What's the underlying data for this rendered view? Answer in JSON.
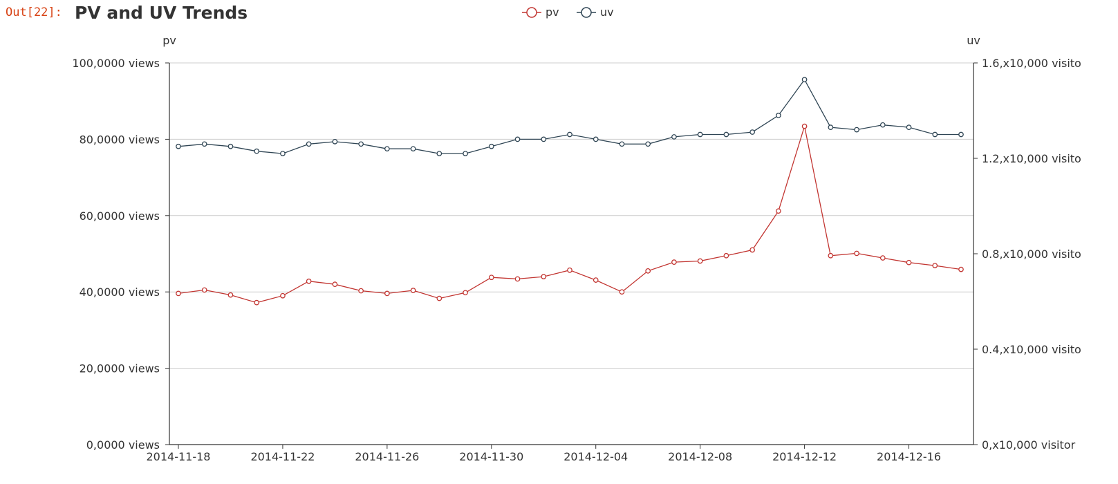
{
  "cell": {
    "prompt": "Out[22]:"
  },
  "chart_data": {
    "type": "line",
    "title": "PV and UV Trends",
    "legend_position": "top-center",
    "grid": true,
    "x": [
      "2014-11-18",
      "2014-11-19",
      "2014-11-20",
      "2014-11-21",
      "2014-11-22",
      "2014-11-23",
      "2014-11-24",
      "2014-11-25",
      "2014-11-26",
      "2014-11-27",
      "2014-11-28",
      "2014-11-29",
      "2014-11-30",
      "2014-12-01",
      "2014-12-02",
      "2014-12-03",
      "2014-12-04",
      "2014-12-05",
      "2014-12-06",
      "2014-12-07",
      "2014-12-08",
      "2014-12-09",
      "2014-12-10",
      "2014-12-11",
      "2014-12-12",
      "2014-12-13",
      "2014-12-14",
      "2014-12-15",
      "2014-12-16",
      "2014-12-17",
      "2014-12-18"
    ],
    "x_tick_labels": [
      "2014-11-18",
      "2014-11-22",
      "2014-11-26",
      "2014-11-30",
      "2014-12-04",
      "2014-12-08",
      "2014-12-12",
      "2014-12-16"
    ],
    "y_left": {
      "name": "pv",
      "ylim": [
        0,
        100
      ],
      "tick_values": [
        0,
        20,
        40,
        60,
        80,
        100
      ],
      "tick_labels": [
        "0,0000 views",
        "20,0000 views",
        "40,0000 views",
        "60,0000 views",
        "80,0000 views",
        "100,0000 views"
      ]
    },
    "y_right": {
      "name": "uv",
      "ylim": [
        0,
        1.6
      ],
      "tick_values": [
        0,
        0.4,
        0.8,
        1.2,
        1.6
      ],
      "tick_labels": [
        "0,x10,000 visitor",
        "0.4,x10,000 visito",
        "0.8,x10,000 visito",
        "1.2,x10,000 visito",
        "1.6,x10,000 visito"
      ]
    },
    "series": [
      {
        "name": "pv",
        "axis": "left",
        "color": "#c23531",
        "values": [
          39.6,
          40.5,
          39.2,
          37.2,
          39.0,
          42.8,
          42.0,
          40.3,
          39.6,
          40.4,
          38.3,
          39.8,
          43.8,
          43.4,
          44.0,
          45.7,
          43.1,
          40.0,
          45.5,
          47.8,
          48.1,
          49.5,
          51.0,
          61.2,
          83.4,
          49.5,
          50.1,
          48.9,
          47.7,
          46.9,
          45.9
        ]
      },
      {
        "name": "uv",
        "axis": "right",
        "color": "#2f4554",
        "values": [
          1.25,
          1.26,
          1.25,
          1.23,
          1.22,
          1.26,
          1.27,
          1.26,
          1.24,
          1.24,
          1.22,
          1.22,
          1.25,
          1.28,
          1.28,
          1.3,
          1.28,
          1.26,
          1.26,
          1.29,
          1.3,
          1.3,
          1.31,
          1.38,
          1.53,
          1.33,
          1.32,
          1.34,
          1.33,
          1.3,
          1.3
        ]
      }
    ]
  }
}
